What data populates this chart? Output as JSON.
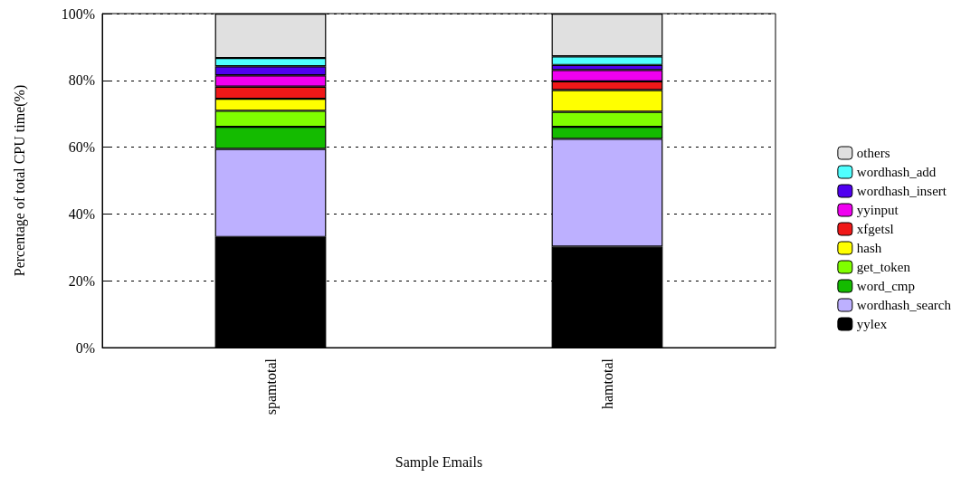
{
  "chart_data": {
    "type": "bar",
    "stacked": true,
    "xlabel": "Sample Emails",
    "ylabel": "Percentage of total CPU time(%)",
    "categories": [
      "spamtotal",
      "hamtotal"
    ],
    "series": [
      {
        "name": "yylex",
        "color": "#000000",
        "values": [
          33.1,
          30.2
        ]
      },
      {
        "name": "wordhash_search",
        "color": "#bdb0ff",
        "values": [
          26.4,
          32.3
        ]
      },
      {
        "name": "word_cmp",
        "color": "#14bb00",
        "values": [
          6.6,
          3.6
        ]
      },
      {
        "name": "get_token",
        "color": "#80ff00",
        "values": [
          4.8,
          4.5
        ]
      },
      {
        "name": "hash",
        "color": "#ffff00",
        "values": [
          3.6,
          6.5
        ]
      },
      {
        "name": "xfgetsl",
        "color": "#f01818",
        "values": [
          3.6,
          2.6
        ]
      },
      {
        "name": "yyinput",
        "color": "#f000f0",
        "values": [
          3.4,
          3.4
        ]
      },
      {
        "name": "wordhash_insert",
        "color": "#5000f0",
        "values": [
          2.7,
          1.5
        ]
      },
      {
        "name": "wordhash_add",
        "color": "#50ffff",
        "values": [
          2.5,
          2.6
        ]
      },
      {
        "name": "others",
        "color": "#e0e0e0",
        "values": [
          13.3,
          12.8
        ]
      }
    ],
    "ylim": [
      0,
      100
    ],
    "yticks": [
      {
        "value": 0,
        "label": "0%"
      },
      {
        "value": 20,
        "label": "20%"
      },
      {
        "value": 40,
        "label": "40%"
      },
      {
        "value": 60,
        "label": "60%"
      },
      {
        "value": 80,
        "label": "80%"
      },
      {
        "value": 100,
        "label": "100%"
      }
    ],
    "grid": "y",
    "legend": "right"
  }
}
